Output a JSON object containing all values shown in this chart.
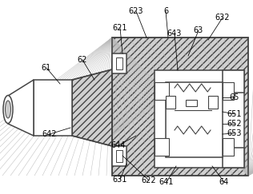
{
  "bg": "#d0d0d0",
  "lc": "#444444",
  "white": "#ffffff",
  "fs": 7.0,
  "hatch_color": "#888888",
  "labels": [
    [
      "61",
      58,
      85
    ],
    [
      "62",
      103,
      75
    ],
    [
      "621",
      150,
      35
    ],
    [
      "622",
      186,
      226
    ],
    [
      "623",
      170,
      14
    ],
    [
      "6",
      207,
      14
    ],
    [
      "63",
      248,
      38
    ],
    [
      "632",
      278,
      22
    ],
    [
      "631",
      150,
      225
    ],
    [
      "641",
      208,
      228
    ],
    [
      "642",
      62,
      168
    ],
    [
      "643",
      218,
      42
    ],
    [
      "644",
      148,
      182
    ],
    [
      "64",
      280,
      228
    ],
    [
      "65",
      293,
      122
    ],
    [
      "651",
      293,
      143
    ],
    [
      "652",
      293,
      155
    ],
    [
      "653",
      293,
      167
    ]
  ]
}
